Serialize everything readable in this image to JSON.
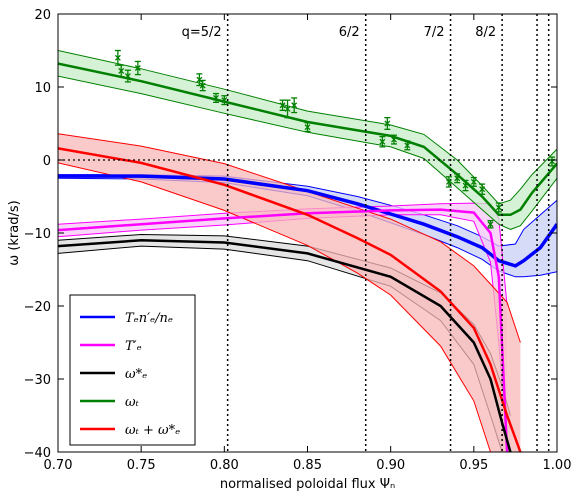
{
  "chart_data": {
    "type": "line",
    "xlabel": "normalised poloidal flux Ψₙ",
    "ylabel": "ω (krad/s)",
    "xlim": [
      0.7,
      1.0
    ],
    "ylim": [
      -40,
      20
    ],
    "x_ticks": [
      "0.70",
      "0.75",
      "0.80",
      "0.85",
      "0.90",
      "0.95",
      "1.00"
    ],
    "y_ticks": [
      "20",
      "10",
      "0",
      "−10",
      "−20",
      "−30",
      "−40"
    ],
    "x_tick_values": [
      0.7,
      0.75,
      0.8,
      0.85,
      0.9,
      0.95,
      1.0
    ],
    "y_tick_values": [
      20,
      10,
      0,
      -10,
      -20,
      -30,
      -40
    ],
    "zero_line": 0,
    "rational_surfaces": [
      {
        "label": "q=5/2",
        "x": 0.802
      },
      {
        "label": "6/2",
        "x": 0.885
      },
      {
        "label": "7/2",
        "x": 0.936
      },
      {
        "label": "8/2",
        "x": 0.967
      },
      {
        "label": "",
        "x": 0.988
      },
      {
        "label": "",
        "x": 0.995
      }
    ],
    "legend_position": "lower-left",
    "series": [
      {
        "name": "Tₑn′ₑ/nₑ",
        "color": "#0000ff",
        "band_color": "#c8d0f4",
        "x": [
          0.7,
          0.75,
          0.8,
          0.85,
          0.88,
          0.9,
          0.92,
          0.94,
          0.955,
          0.965,
          0.975,
          0.98,
          0.99,
          1.0
        ],
        "y": [
          -2.2,
          -2.2,
          -2.6,
          -4.2,
          -6.0,
          -7.4,
          -8.8,
          -10.5,
          -12.0,
          -13.8,
          -14.5,
          -13.8,
          -12.0,
          -8.8
        ],
        "upper": [
          -2.0,
          -2.0,
          -2.2,
          -3.6,
          -5.0,
          -6.2,
          -7.5,
          -9.0,
          -10.5,
          -11.8,
          -11.5,
          -9.5,
          -7.5,
          -5.5
        ],
        "lower": [
          -2.5,
          -2.6,
          -3.1,
          -4.9,
          -7.0,
          -8.6,
          -10.2,
          -12.0,
          -13.6,
          -15.2,
          -16.0,
          -16.0,
          -15.8,
          -15.3
        ]
      },
      {
        "name": "T′ₑ",
        "color": "#ff00ff",
        "band_color": "#f7c8f7",
        "x": [
          0.7,
          0.75,
          0.8,
          0.85,
          0.9,
          0.93,
          0.95,
          0.96,
          0.965,
          0.97
        ],
        "y": [
          -9.6,
          -8.8,
          -8.0,
          -7.3,
          -6.9,
          -6.8,
          -7.2,
          -10.0,
          -16.0,
          -40.0
        ],
        "upper": [
          -8.8,
          -8.1,
          -7.3,
          -6.7,
          -6.3,
          -6.0,
          -5.9,
          -6.0,
          -8.0,
          -20.0
        ],
        "lower": [
          -10.5,
          -9.6,
          -8.9,
          -8.0,
          -7.5,
          -7.5,
          -8.4,
          -14.0,
          -25.0,
          -40.0
        ]
      },
      {
        "name": "ω*ₑ",
        "color": "#000000",
        "band_color": "#dcdcdc",
        "x": [
          0.7,
          0.75,
          0.8,
          0.85,
          0.9,
          0.93,
          0.95,
          0.96,
          0.967,
          0.972
        ],
        "y": [
          -11.8,
          -11.0,
          -11.3,
          -12.8,
          -16.0,
          -20.0,
          -25.0,
          -30.0,
          -36.0,
          -40.0
        ],
        "upper": [
          -11.0,
          -10.2,
          -10.4,
          -11.8,
          -14.8,
          -18.2,
          -22.5,
          -26.5,
          -31.0,
          -35.0
        ],
        "lower": [
          -12.8,
          -11.8,
          -12.2,
          -13.8,
          -17.3,
          -22.0,
          -28.0,
          -35.0,
          -40.0,
          -40.0
        ]
      },
      {
        "name": "ωₜ",
        "color": "#008000",
        "band_color": "#c8eec8",
        "x": [
          0.7,
          0.75,
          0.8,
          0.85,
          0.9,
          0.92,
          0.94,
          0.955,
          0.965,
          0.972,
          0.978,
          0.985,
          1.0
        ],
        "y": [
          13.2,
          10.8,
          8.0,
          5.2,
          3.3,
          1.8,
          -2.0,
          -5.0,
          -7.5,
          -7.5,
          -6.8,
          -4.5,
          -0.5
        ],
        "upper": [
          15.0,
          12.5,
          9.7,
          6.7,
          4.8,
          3.5,
          0.0,
          -3.5,
          -6.0,
          -5.5,
          -4.0,
          -2.0,
          1.5
        ],
        "lower": [
          11.5,
          9.1,
          6.4,
          3.8,
          1.8,
          0.2,
          -3.8,
          -6.8,
          -8.8,
          -9.5,
          -9.0,
          -7.0,
          -2.5
        ]
      },
      {
        "name": "ωₜ + ω*ₑ",
        "color": "#ff0000",
        "band_color": "#f8b8b8",
        "x": [
          0.7,
          0.75,
          0.8,
          0.85,
          0.88,
          0.9,
          0.93,
          0.95,
          0.96,
          0.97,
          0.978
        ],
        "y": [
          1.6,
          -0.4,
          -3.4,
          -7.5,
          -10.7,
          -13.0,
          -18.0,
          -23.0,
          -28.0,
          -35.0,
          -40.0
        ],
        "upper": [
          3.6,
          1.9,
          -0.5,
          -4.3,
          -6.6,
          -8.1,
          -11.2,
          -14.5,
          -17.0,
          -19.5,
          -25.0
        ],
        "lower": [
          -0.4,
          -3.0,
          -6.9,
          -11.7,
          -15.5,
          -18.5,
          -25.5,
          -33.0,
          -40.0,
          -40.0,
          -40.0
        ]
      }
    ],
    "measurements": {
      "name": "ωₜ measurements",
      "color": "#008000",
      "x": [
        0.736,
        0.738,
        0.742,
        0.748,
        0.785,
        0.787,
        0.795,
        0.8,
        0.835,
        0.838,
        0.842,
        0.85,
        0.895,
        0.898,
        0.902,
        0.91,
        0.935,
        0.94,
        0.945,
        0.95,
        0.955,
        0.96,
        0.965,
        0.997
      ],
      "y": [
        14.0,
        12.2,
        11.5,
        12.6,
        11.0,
        10.2,
        8.5,
        8.2,
        7.5,
        7.0,
        7.5,
        4.5,
        2.5,
        5.0,
        2.8,
        2.0,
        -3.0,
        -2.5,
        -3.5,
        -3.0,
        -4.0,
        -8.8,
        -6.5,
        -0.2
      ],
      "err": [
        1.0,
        0.8,
        0.8,
        0.9,
        0.8,
        0.7,
        0.6,
        0.6,
        0.7,
        1.2,
        1.0,
        0.6,
        0.7,
        0.8,
        0.6,
        0.6,
        0.7,
        0.6,
        0.7,
        0.6,
        0.7,
        0.5,
        0.6,
        0.6
      ]
    }
  }
}
